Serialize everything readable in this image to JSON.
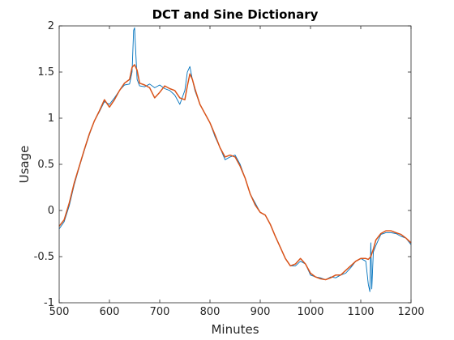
{
  "chart_data": {
    "type": "line",
    "title": "DCT and Sine Dictionary",
    "xlabel": "Minutes",
    "ylabel": "Usage",
    "xlim": [
      500,
      1200
    ],
    "ylim": [
      -1,
      2
    ],
    "xticks": [
      "500",
      "600",
      "700",
      "800",
      "900",
      "1000",
      "1100",
      "1200"
    ],
    "yticks": [
      "-1",
      "-0.5",
      "0",
      "0.5",
      "1",
      "1.5",
      "2"
    ],
    "grid": false,
    "series": [
      {
        "color": "#0072BD",
        "x": [
          500,
          510,
          520,
          530,
          540,
          550,
          560,
          570,
          580,
          590,
          600,
          610,
          620,
          630,
          640,
          645,
          648,
          650,
          655,
          660,
          670,
          680,
          690,
          700,
          710,
          720,
          730,
          740,
          750,
          755,
          760,
          765,
          770,
          780,
          790,
          800,
          810,
          820,
          830,
          840,
          850,
          860,
          870,
          880,
          890,
          900,
          910,
          920,
          930,
          940,
          950,
          960,
          970,
          980,
          990,
          1000,
          1010,
          1020,
          1030,
          1040,
          1050,
          1060,
          1070,
          1080,
          1090,
          1100,
          1110,
          1115,
          1118,
          1120,
          1122,
          1125,
          1130,
          1140,
          1150,
          1160,
          1170,
          1180,
          1190,
          1200
        ],
        "y": [
          -0.2,
          -0.12,
          0.05,
          0.28,
          0.47,
          0.65,
          0.82,
          0.97,
          1.07,
          1.18,
          1.15,
          1.22,
          1.3,
          1.36,
          1.37,
          1.5,
          1.95,
          1.98,
          1.42,
          1.35,
          1.34,
          1.37,
          1.33,
          1.36,
          1.32,
          1.3,
          1.25,
          1.15,
          1.3,
          1.5,
          1.56,
          1.42,
          1.3,
          1.15,
          1.05,
          0.95,
          0.8,
          0.68,
          0.55,
          0.58,
          0.6,
          0.5,
          0.35,
          0.18,
          0.08,
          -0.02,
          -0.05,
          -0.15,
          -0.28,
          -0.4,
          -0.52,
          -0.6,
          -0.6,
          -0.55,
          -0.58,
          -0.7,
          -0.72,
          -0.73,
          -0.75,
          -0.72,
          -0.73,
          -0.7,
          -0.68,
          -0.62,
          -0.55,
          -0.52,
          -0.55,
          -0.8,
          -0.88,
          -0.35,
          -0.85,
          -0.45,
          -0.38,
          -0.26,
          -0.24,
          -0.24,
          -0.25,
          -0.28,
          -0.3,
          -0.37
        ]
      },
      {
        "color": "#D95319",
        "x": [
          500,
          510,
          520,
          530,
          540,
          550,
          560,
          570,
          580,
          590,
          600,
          610,
          620,
          630,
          640,
          645,
          650,
          655,
          660,
          670,
          680,
          690,
          700,
          710,
          720,
          730,
          740,
          750,
          755,
          760,
          765,
          770,
          780,
          790,
          800,
          810,
          820,
          830,
          840,
          850,
          860,
          870,
          880,
          890,
          900,
          910,
          920,
          930,
          940,
          950,
          960,
          970,
          980,
          990,
          1000,
          1010,
          1020,
          1030,
          1040,
          1050,
          1060,
          1070,
          1080,
          1090,
          1100,
          1110,
          1115,
          1120,
          1125,
          1130,
          1140,
          1150,
          1160,
          1170,
          1180,
          1190,
          1200
        ],
        "y": [
          -0.17,
          -0.1,
          0.08,
          0.3,
          0.48,
          0.66,
          0.83,
          0.97,
          1.08,
          1.2,
          1.12,
          1.2,
          1.3,
          1.38,
          1.42,
          1.55,
          1.58,
          1.52,
          1.38,
          1.36,
          1.33,
          1.22,
          1.28,
          1.35,
          1.32,
          1.3,
          1.22,
          1.2,
          1.35,
          1.48,
          1.42,
          1.32,
          1.15,
          1.05,
          0.95,
          0.82,
          0.68,
          0.58,
          0.6,
          0.58,
          0.48,
          0.35,
          0.18,
          0.06,
          -0.02,
          -0.05,
          -0.15,
          -0.28,
          -0.4,
          -0.52,
          -0.6,
          -0.58,
          -0.52,
          -0.58,
          -0.68,
          -0.72,
          -0.74,
          -0.75,
          -0.73,
          -0.7,
          -0.7,
          -0.65,
          -0.6,
          -0.55,
          -0.52,
          -0.52,
          -0.53,
          -0.5,
          -0.42,
          -0.32,
          -0.25,
          -0.22,
          -0.22,
          -0.24,
          -0.26,
          -0.3,
          -0.35
        ]
      }
    ]
  }
}
